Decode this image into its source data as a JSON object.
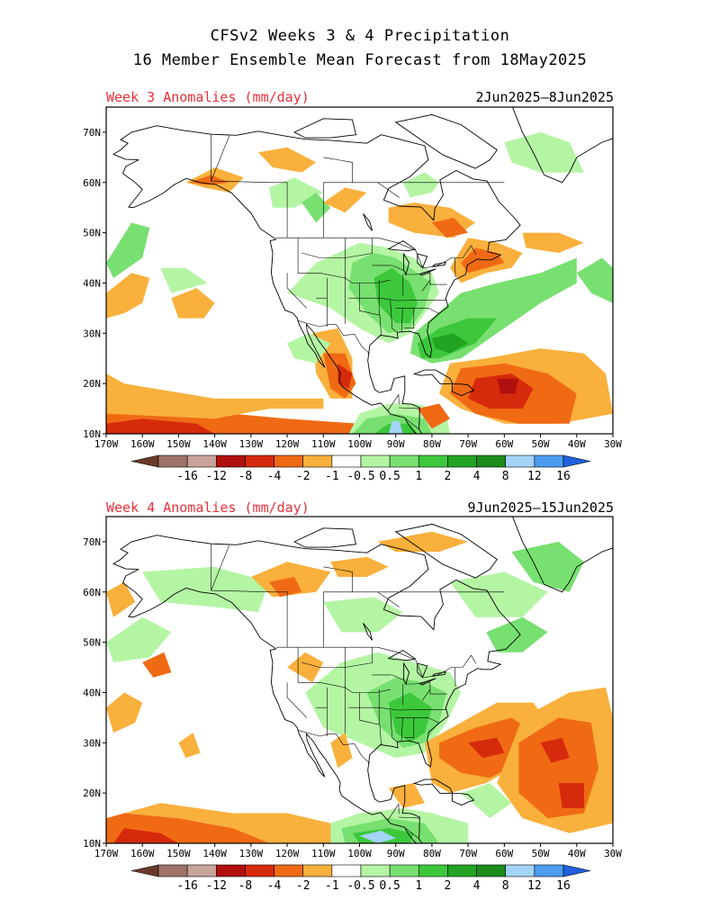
{
  "header": {
    "title_line1": "CFSv2 Weeks 3 & 4 Precipitation",
    "title_line2": "16 Member Ensemble Mean Forecast from 18May2025"
  },
  "panels": [
    {
      "label": "Week 3 Anomalies (mm/day)",
      "date_range": "2Jun2025–8Jun2025",
      "anomaly_blobs": [
        {
          "level": "green2",
          "lon": -95,
          "lat": 37
        },
        {
          "level": "green3",
          "lon": -85,
          "lat": 33
        },
        {
          "level": "green2",
          "lon": -160,
          "lat": 48
        },
        {
          "level": "red2",
          "lon": -55,
          "lat": 20
        },
        {
          "level": "orange",
          "lon": -105,
          "lat": 22
        },
        {
          "level": "red1",
          "lon": -150,
          "lat": 12
        },
        {
          "level": "orange",
          "lon": -65,
          "lat": 48
        },
        {
          "level": "blue1",
          "lon": -90,
          "lat": 11
        }
      ]
    },
    {
      "label": "Week 4 Anomalies (mm/day)",
      "date_range": "9Jun2025–15Jun2025",
      "anomaly_blobs": [
        {
          "level": "green2",
          "lon": -88,
          "lat": 35
        },
        {
          "level": "red1",
          "lon": -60,
          "lat": 28
        },
        {
          "level": "red1",
          "lon": -45,
          "lat": 22
        },
        {
          "level": "red1",
          "lon": -150,
          "lat": 14
        },
        {
          "level": "green3",
          "lon": -95,
          "lat": 13
        },
        {
          "level": "blue1",
          "lon": -97,
          "lat": 12
        },
        {
          "level": "orange",
          "lon": -120,
          "lat": 60
        }
      ]
    }
  ],
  "axes": {
    "lat_ticks": [
      "10N",
      "20N",
      "30N",
      "40N",
      "50N",
      "60N",
      "70N"
    ],
    "lat_values": [
      10,
      20,
      30,
      40,
      50,
      60,
      70
    ],
    "lon_ticks": [
      "170W",
      "160W",
      "150W",
      "140W",
      "130W",
      "120W",
      "110W",
      "100W",
      "90W",
      "80W",
      "70W",
      "60W",
      "50W",
      "40W",
      "30W"
    ],
    "lon_values": [
      -170,
      -160,
      -150,
      -140,
      -130,
      -120,
      -110,
      -100,
      -90,
      -80,
      -70,
      -60,
      -50,
      -40,
      -30
    ],
    "lon_range": [
      -170,
      -30
    ],
    "lat_range": [
      10,
      75
    ]
  },
  "colorbar": {
    "labels": [
      "-16",
      "-12",
      "-8",
      "-4",
      "-2",
      "-1",
      "-0.5",
      "0.5",
      "1",
      "2",
      "4",
      "8",
      "12",
      "16"
    ],
    "colors": [
      "#6b3a2a",
      "#a07468",
      "#c8a49a",
      "#b0100e",
      "#d62a0c",
      "#f06a14",
      "#f9b03c",
      "#ffffff",
      "#b4f5a4",
      "#78e070",
      "#3dc83c",
      "#22a422",
      "#1c8c1c",
      "#a4d4f8",
      "#4c9cf0",
      "#2060e0"
    ]
  },
  "colors": {
    "green1": "#b4f5a4",
    "green2": "#78e070",
    "green3": "#3dc83c",
    "green4": "#22a422",
    "orange": "#f9b03c",
    "red1": "#f06a14",
    "red2": "#d62a0c",
    "red3": "#b0100e",
    "blue1": "#a4d4f8",
    "title_red": "#e8303a"
  }
}
